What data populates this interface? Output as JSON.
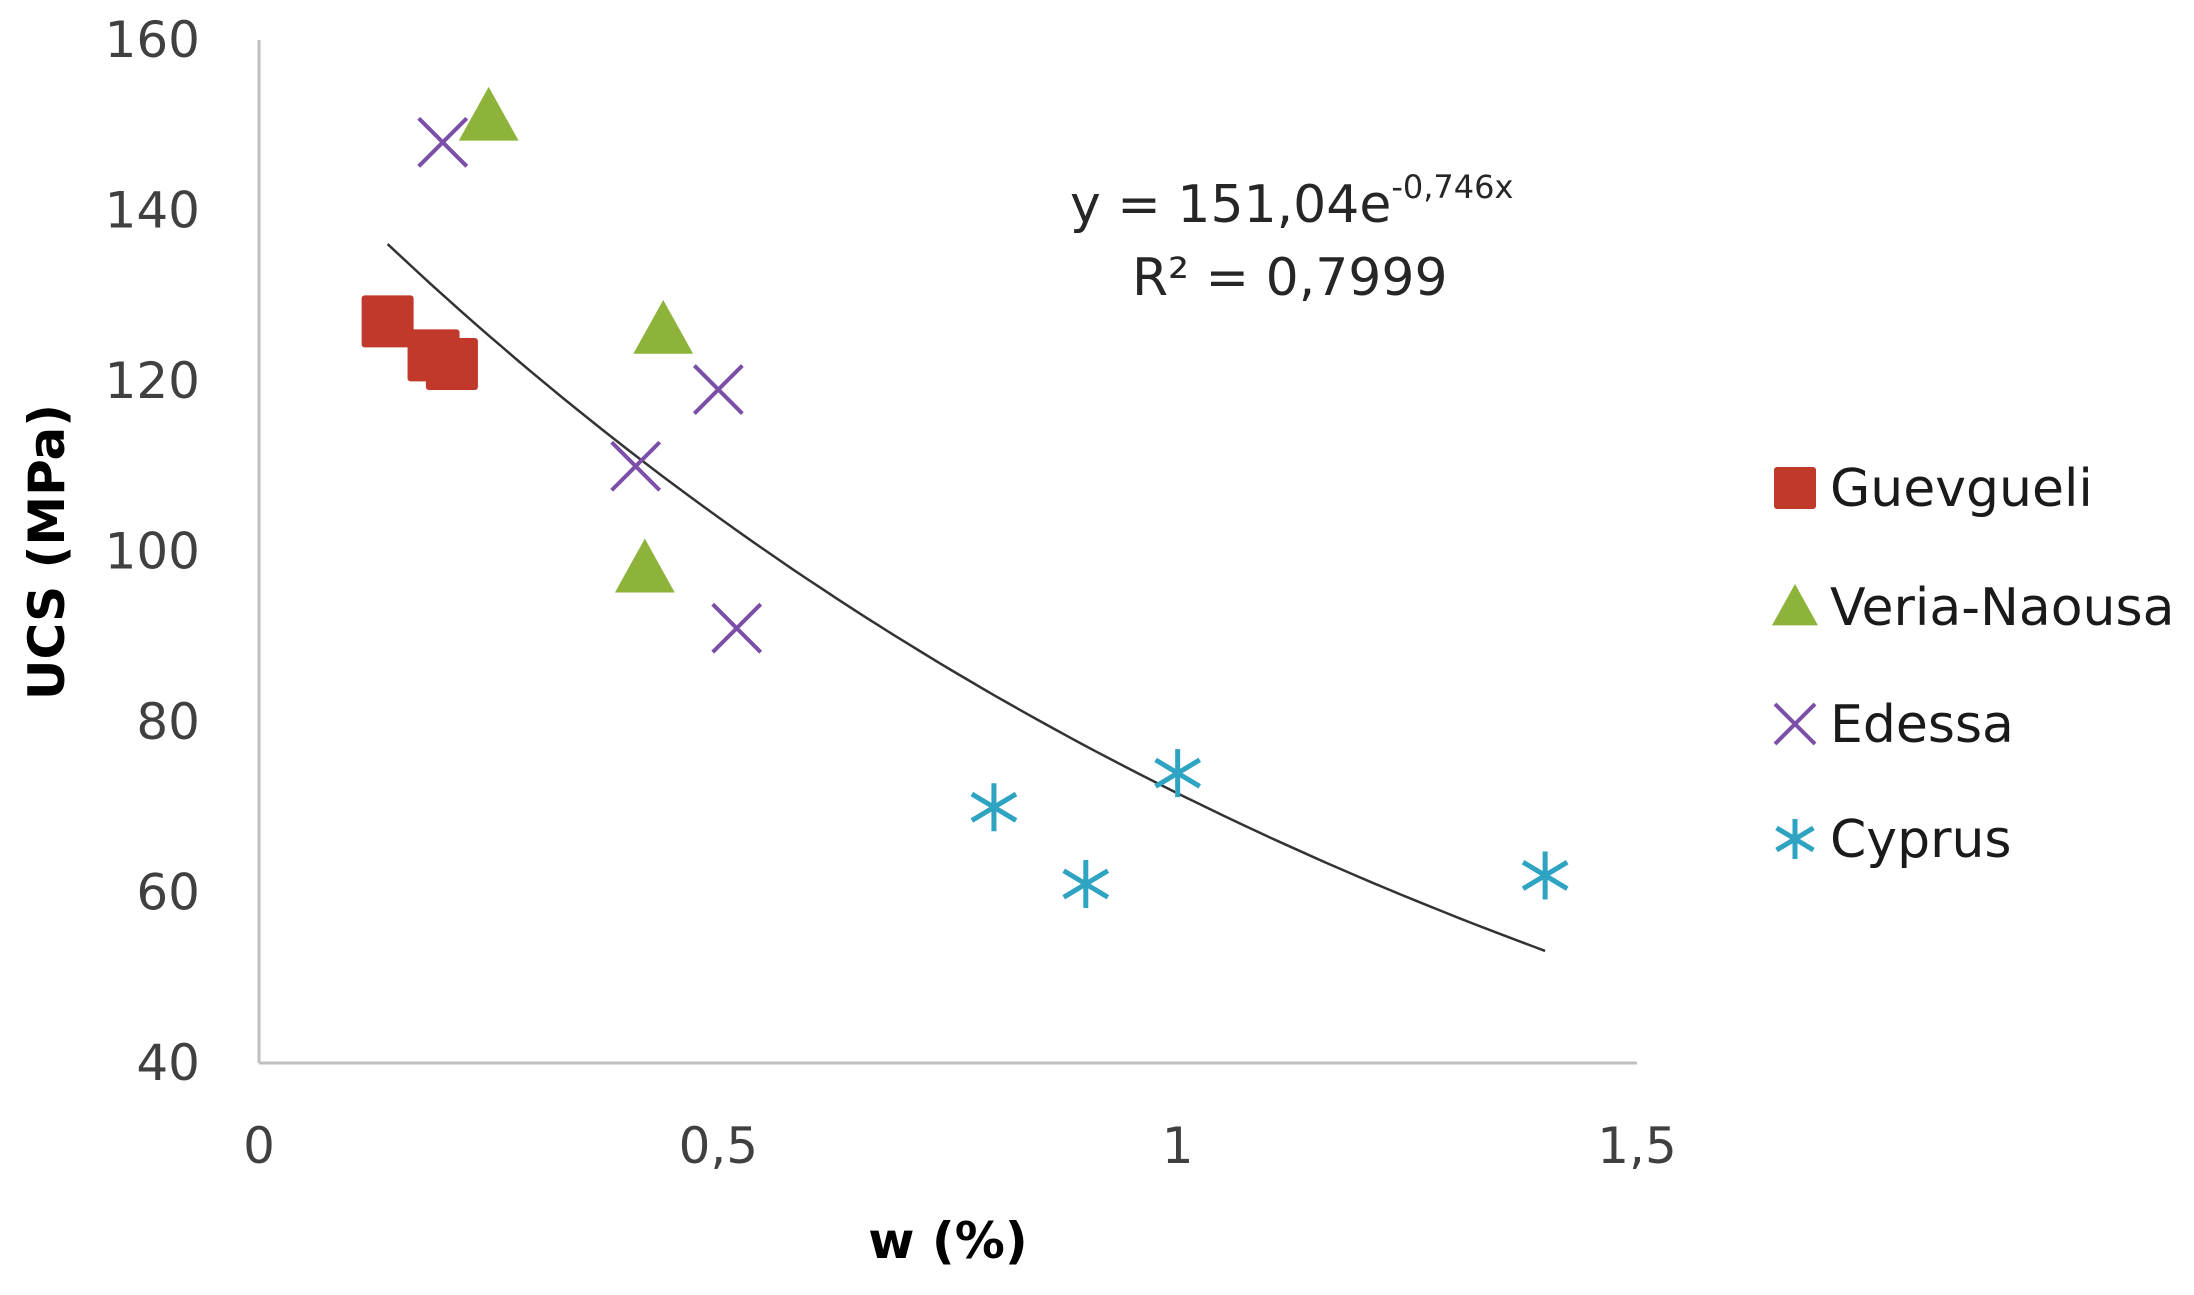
{
  "chart_data": {
    "type": "scatter",
    "title": "",
    "xlabel": "w (%)",
    "ylabel": "UCS (MPa)",
    "xlim": [
      0,
      1.5
    ],
    "ylim": [
      40,
      160
    ],
    "xticks": [
      0,
      0.5,
      1,
      1.5
    ],
    "xtick_labels": [
      "0",
      "0,5",
      "1",
      "1,5"
    ],
    "yticks": [
      40,
      60,
      80,
      100,
      120,
      140,
      160
    ],
    "ytick_labels": [
      "40",
      "60",
      "80",
      "100",
      "120",
      "140",
      "160"
    ],
    "grid": false,
    "legend_position": "right",
    "series": [
      {
        "name": "Guevgueli",
        "marker": "square",
        "color": "#c0392b",
        "points": [
          [
            0.14,
            127
          ],
          [
            0.19,
            123
          ],
          [
            0.21,
            122
          ]
        ]
      },
      {
        "name": "Veria-Naousa",
        "marker": "triangle",
        "color": "#8db33a",
        "points": [
          [
            0.25,
            151
          ],
          [
            0.44,
            126
          ],
          [
            0.42,
            98
          ]
        ]
      },
      {
        "name": "Edessa",
        "marker": "x",
        "color": "#7b4fa8",
        "points": [
          [
            0.2,
            148
          ],
          [
            0.5,
            119
          ],
          [
            0.41,
            110
          ],
          [
            0.52,
            91
          ]
        ]
      },
      {
        "name": "Cyprus",
        "marker": "asterisk",
        "color": "#2fa3c2",
        "points": [
          [
            0.8,
            70
          ],
          [
            0.9,
            61
          ],
          [
            1.0,
            74
          ],
          [
            1.4,
            62
          ]
        ]
      }
    ],
    "trendline": {
      "type": "exponential",
      "a": 151.04,
      "b": -0.746,
      "x_range": [
        0.14,
        1.4
      ],
      "color": "#333333"
    },
    "equation": {
      "prefix": "y = 151,04e",
      "exponent": "-0,746x",
      "r2": "R² = 0,7999"
    }
  }
}
